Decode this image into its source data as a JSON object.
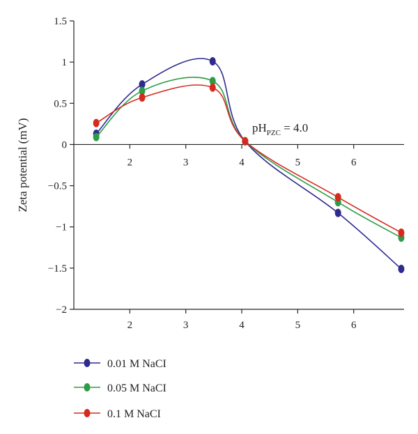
{
  "chart_data": {
    "type": "line",
    "title": "",
    "xlabel": "",
    "ylabel": "Zeta potential (mV)",
    "xlim": [
      1,
      6.9
    ],
    "ylim": [
      -2,
      1.5
    ],
    "x_ticks": [
      2,
      3,
      4,
      5,
      6
    ],
    "y_ticks": [
      -2,
      -1.5,
      -1,
      -0.5,
      0,
      0.5,
      1,
      1.5
    ],
    "x_tick_labels": [
      "2",
      "3",
      "4",
      "5",
      "6"
    ],
    "y_tick_labels": [
      "−2",
      "−1.5",
      "−1",
      "−0.5",
      "0",
      "0.5",
      "1",
      "1.5"
    ],
    "annotation": {
      "main": "pH",
      "sub": "PZC",
      "rest": " = 4.0"
    },
    "legend_position": "below",
    "x": [
      1.4,
      2.22,
      3.48,
      4.06,
      5.72,
      6.85
    ],
    "series": [
      {
        "name": "0.01 M NaCI",
        "color": "#2e2a8f",
        "values": [
          0.13,
          0.73,
          1.01,
          0.04,
          -0.83,
          -1.51
        ]
      },
      {
        "name": "0.05 M NaCI",
        "color": "#2e9b47",
        "values": [
          0.09,
          0.65,
          0.77,
          0.04,
          -0.7,
          -1.13
        ]
      },
      {
        "name": "0.1 M NaCI",
        "color": "#d62a1e",
        "values": [
          0.26,
          0.57,
          0.69,
          0.04,
          -0.64,
          -1.07
        ]
      }
    ]
  }
}
